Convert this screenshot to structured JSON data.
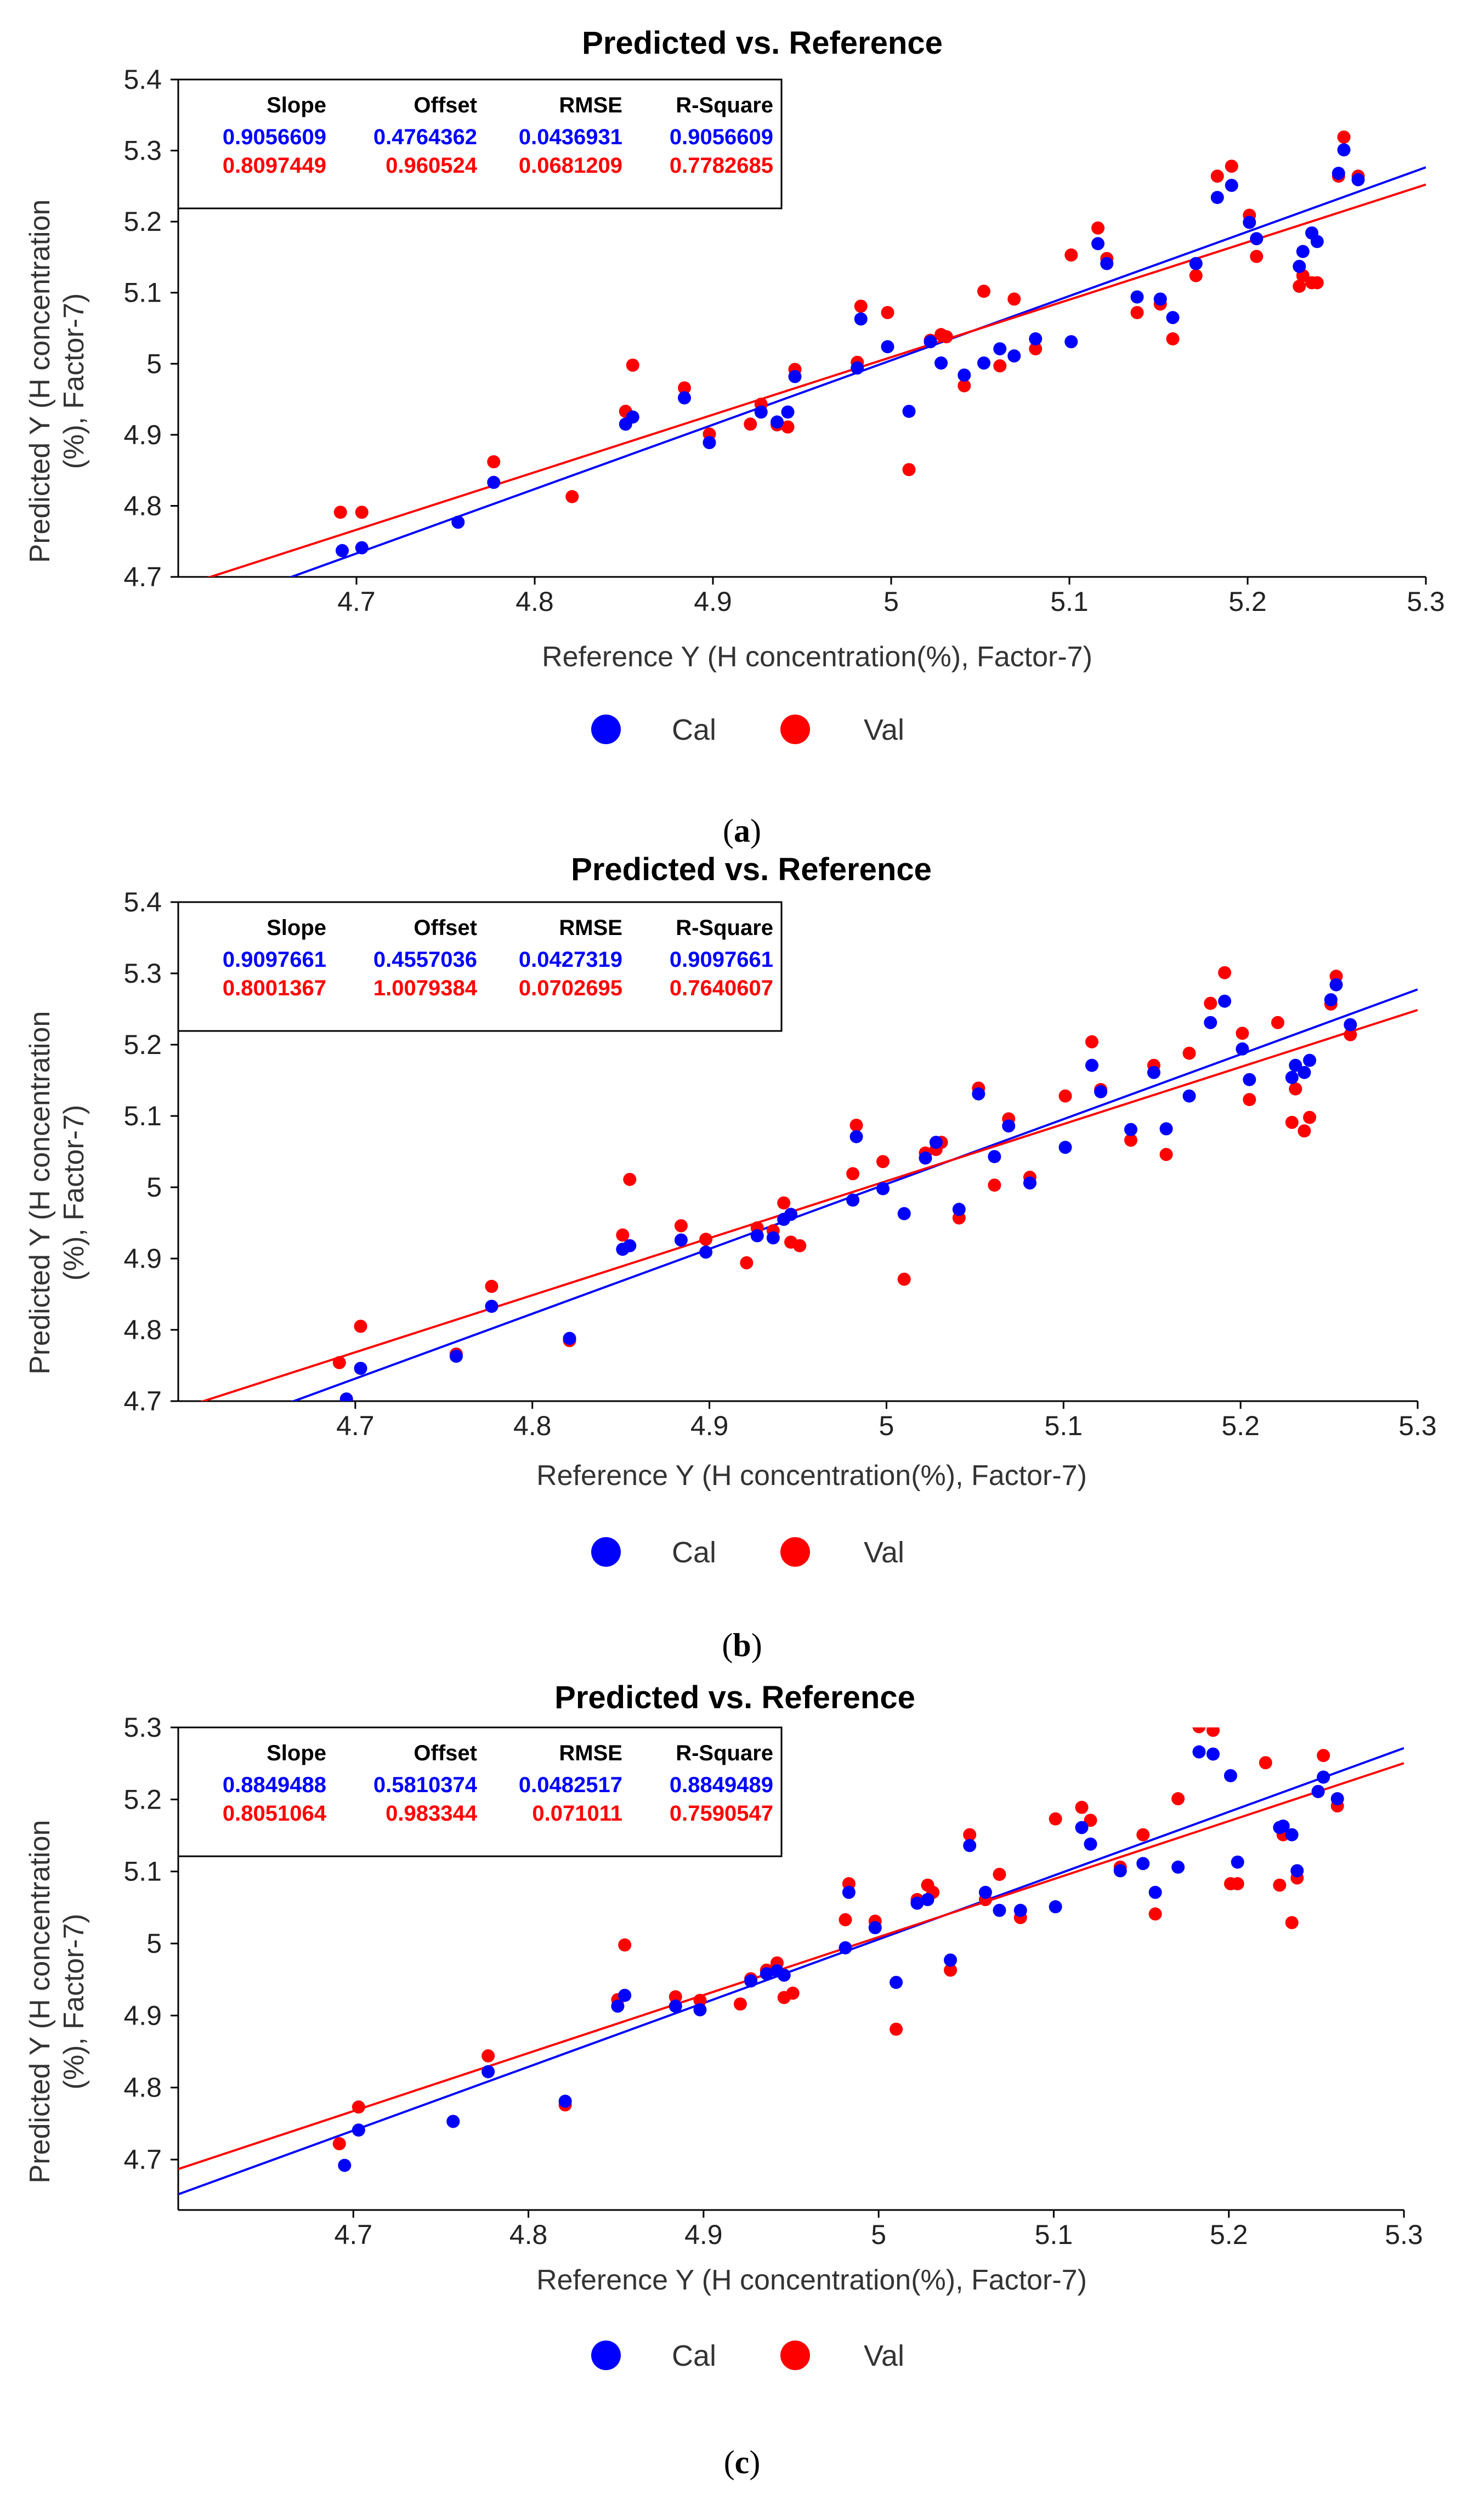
{
  "chart_data": [
    {
      "type": "scatter",
      "title": "Predicted vs. Reference",
      "xlabel": "Reference Y (H concentration(%), Factor-7)",
      "ylabel_lines": [
        "Predicted Y (H concentration",
        "(%), Factor-7)"
      ],
      "xlim": [
        4.6,
        5.3
      ],
      "ylim": [
        4.7,
        5.4
      ],
      "xticks": [
        "4.7",
        "4.8",
        "4.9",
        "5",
        "5.1",
        "5.2",
        "5.3"
      ],
      "yticks": [
        "4.7",
        "4.8",
        "4.9",
        "5",
        "5.1",
        "5.2",
        "5.3",
        "5.4"
      ],
      "caption_label": "a",
      "stats_headers": [
        "Slope",
        "Offset",
        "RMSE",
        "R-Square"
      ],
      "series": [
        {
          "name": "Cal",
          "color": "#0000ff",
          "stats": [
            "0.9056609",
            "0.4764362",
            "0.0436931",
            "0.9056609"
          ],
          "line": {
            "slope": 0.9056609,
            "offset": 0.4764362
          },
          "x": [
            4.692,
            4.703,
            4.757,
            4.777,
            4.851,
            4.855,
            4.884,
            4.898,
            4.927,
            4.936,
            4.942,
            4.946,
            4.981,
            4.983,
            4.998,
            5.01,
            5.022,
            5.028,
            5.041,
            5.052,
            5.061,
            5.069,
            5.081,
            5.101,
            5.116,
            5.121,
            5.138,
            5.151,
            5.158,
            5.171,
            5.183,
            5.191,
            5.201,
            5.205,
            5.229,
            5.231,
            5.236,
            5.239,
            5.251,
            5.254,
            5.262
          ],
          "y": [
            4.737,
            4.741,
            4.777,
            4.833,
            4.915,
            4.925,
            4.952,
            4.889,
            4.932,
            4.918,
            4.932,
            4.982,
            4.994,
            5.063,
            5.024,
            4.933,
            5.031,
            5.001,
            4.984,
            5.001,
            5.021,
            5.011,
            5.035,
            5.031,
            5.169,
            5.141,
            5.094,
            5.091,
            5.065,
            5.141,
            5.234,
            5.251,
            5.199,
            5.176,
            5.137,
            5.158,
            5.184,
            5.172,
            5.268,
            5.301,
            5.259
          ]
        },
        {
          "name": "Val",
          "color": "#ff0000",
          "stats": [
            "0.8097449",
            "0.960524",
            "0.0681209",
            "0.7782685"
          ],
          "line": {
            "slope": 0.8097449,
            "offset": 0.960524
          },
          "x": [
            4.691,
            4.703,
            4.777,
            4.821,
            4.851,
            4.855,
            4.884,
            4.898,
            4.921,
            4.927,
            4.936,
            4.942,
            4.946,
            4.981,
            4.983,
            4.998,
            5.01,
            5.022,
            5.028,
            5.031,
            5.041,
            5.052,
            5.061,
            5.069,
            5.081,
            5.101,
            5.116,
            5.121,
            5.138,
            5.151,
            5.158,
            5.171,
            5.183,
            5.191,
            5.201,
            5.205,
            5.229,
            5.231,
            5.236,
            5.239,
            5.251,
            5.254,
            5.262
          ],
          "y": [
            4.791,
            4.791,
            4.862,
            4.813,
            4.933,
            4.998,
            4.966,
            4.901,
            4.915,
            4.943,
            4.914,
            4.911,
            4.992,
            5.002,
            5.081,
            5.072,
            4.851,
            5.033,
            5.041,
            5.038,
            4.969,
            5.102,
            4.997,
            5.091,
            5.021,
            5.153,
            5.191,
            5.148,
            5.072,
            5.084,
            5.035,
            5.124,
            5.264,
            5.278,
            5.209,
            5.151,
            5.109,
            5.124,
            5.114,
            5.114,
            5.264,
            5.319,
            5.264
          ]
        }
      ]
    },
    {
      "type": "scatter",
      "title": "Predicted vs. Reference",
      "xlabel": "Reference Y (H concentration(%), Factor-7)",
      "ylabel_lines": [
        "Predicted Y (H concentration",
        "(%), Factor-7)"
      ],
      "xlim": [
        4.6,
        5.3
      ],
      "ylim": [
        4.7,
        5.4
      ],
      "xticks": [
        "4.7",
        "4.8",
        "4.9",
        "5",
        "5.1",
        "5.2",
        "5.3"
      ],
      "yticks": [
        "4.7",
        "4.8",
        "4.9",
        "5",
        "5.1",
        "5.2",
        "5.3",
        "5.4"
      ],
      "caption_label": "b",
      "stats_headers": [
        "Slope",
        "Offset",
        "RMSE",
        "R-Square"
      ],
      "series": [
        {
          "name": "Cal",
          "color": "#0000ff",
          "stats": [
            "0.9097661",
            "0.4557036",
            "0.0427319",
            "0.9097661"
          ],
          "line": {
            "slope": 0.9097661,
            "offset": 0.4557036
          },
          "x": [
            4.695,
            4.703,
            4.757,
            4.777,
            4.821,
            4.851,
            4.855,
            4.884,
            4.898,
            4.927,
            4.936,
            4.942,
            4.946,
            4.981,
            4.983,
            4.998,
            5.01,
            5.022,
            5.028,
            5.041,
            5.052,
            5.061,
            5.069,
            5.081,
            5.101,
            5.116,
            5.121,
            5.138,
            5.151,
            5.158,
            5.171,
            5.183,
            5.191,
            5.201,
            5.205,
            5.229,
            5.231,
            5.236,
            5.239,
            5.251,
            5.254,
            5.262
          ],
          "y": [
            4.703,
            4.746,
            4.763,
            4.833,
            4.788,
            4.913,
            4.918,
            4.926,
            4.909,
            4.932,
            4.929,
            4.955,
            4.962,
            4.982,
            5.071,
            4.998,
            4.963,
            5.041,
            5.063,
            4.969,
            5.131,
            5.043,
            5.086,
            5.006,
            5.056,
            5.171,
            5.134,
            5.081,
            5.161,
            5.082,
            5.128,
            5.231,
            5.261,
            5.194,
            5.151,
            5.154,
            5.171,
            5.161,
            5.178,
            5.263,
            5.284,
            5.228
          ]
        },
        {
          "name": "Val",
          "color": "#ff0000",
          "stats": [
            "0.8001367",
            "1.0079384",
            "0.0702695",
            "0.7640607"
          ],
          "line": {
            "slope": 0.8001367,
            "offset": 1.0079384
          },
          "x": [
            4.691,
            4.703,
            4.757,
            4.777,
            4.821,
            4.851,
            4.855,
            4.884,
            4.898,
            4.921,
            4.927,
            4.936,
            4.942,
            4.946,
            4.951,
            4.981,
            4.983,
            4.998,
            5.01,
            5.022,
            5.028,
            5.031,
            5.041,
            5.052,
            5.061,
            5.069,
            5.081,
            5.101,
            5.116,
            5.121,
            5.138,
            5.151,
            5.158,
            5.171,
            5.183,
            5.191,
            5.201,
            5.205,
            5.221,
            5.229,
            5.231,
            5.236,
            5.239,
            5.251,
            5.254,
            5.262
          ],
          "y": [
            4.754,
            4.805,
            4.766,
            4.861,
            4.785,
            4.933,
            5.011,
            4.946,
            4.927,
            4.894,
            4.943,
            4.939,
            4.978,
            4.923,
            4.918,
            5.019,
            5.087,
            5.036,
            4.871,
            5.048,
            5.053,
            5.063,
            4.957,
            5.139,
            5.003,
            5.096,
            5.014,
            5.128,
            5.204,
            5.137,
            5.066,
            5.171,
            5.046,
            5.188,
            5.258,
            5.301,
            5.216,
            5.123,
            5.231,
            5.091,
            5.138,
            5.079,
            5.098,
            5.257,
            5.296,
            5.214
          ]
        }
      ]
    },
    {
      "type": "scatter",
      "title": "Predicted vs. Reference",
      "xlabel": "Reference Y (H concentration(%), Factor-7)",
      "ylabel_lines": [
        "Predicted Y (H concentration",
        "(%), Factor-7)"
      ],
      "xlim": [
        4.6,
        5.3
      ],
      "ylim": [
        4.63,
        5.3
      ],
      "xticks": [
        "4.7",
        "4.8",
        "4.9",
        "5",
        "5.1",
        "5.2",
        "5.3"
      ],
      "yticks": [
        "4.7",
        "4.8",
        "4.9",
        "5",
        "5.1",
        "5.2",
        "5.3"
      ],
      "caption_label": "c",
      "stats_headers": [
        "Slope",
        "Offset",
        "RMSE",
        "R-Square"
      ],
      "series": [
        {
          "name": "Cal",
          "color": "#0000ff",
          "stats": [
            "0.8849488",
            "0.5810374",
            "0.0482517",
            "0.8849489"
          ],
          "line": {
            "slope": 0.8849488,
            "offset": 0.5810374
          },
          "x": [
            4.695,
            4.703,
            4.757,
            4.777,
            4.821,
            4.851,
            4.855,
            4.884,
            4.898,
            4.927,
            4.936,
            4.942,
            4.946,
            4.981,
            4.983,
            4.998,
            5.01,
            5.022,
            5.028,
            5.041,
            5.052,
            5.061,
            5.069,
            5.081,
            5.101,
            5.116,
            5.121,
            5.138,
            5.151,
            5.158,
            5.171,
            5.183,
            5.191,
            5.201,
            5.205,
            5.229,
            5.231,
            5.236,
            5.239,
            5.251,
            5.254,
            5.262
          ],
          "y": [
            4.692,
            4.741,
            4.753,
            4.822,
            4.781,
            4.913,
            4.928,
            4.913,
            4.908,
            4.948,
            4.958,
            4.962,
            4.956,
            4.994,
            5.071,
            5.022,
            4.946,
            5.056,
            5.061,
            4.977,
            5.136,
            5.071,
            5.046,
            5.046,
            5.051,
            5.161,
            5.138,
            5.101,
            5.111,
            5.071,
            5.106,
            5.266,
            5.263,
            5.233,
            5.113,
            5.161,
            5.163,
            5.151,
            5.101,
            5.211,
            5.231,
            5.201
          ]
        },
        {
          "name": "Val",
          "color": "#ff0000",
          "stats": [
            "0.8051064",
            "0.983344",
            "0.071011",
            "0.7590547"
          ],
          "line": {
            "slope": 0.8051064,
            "offset": 0.983344
          },
          "x": [
            4.692,
            4.703,
            4.757,
            4.777,
            4.821,
            4.851,
            4.855,
            4.884,
            4.898,
            4.921,
            4.927,
            4.936,
            4.942,
            4.946,
            4.951,
            4.981,
            4.983,
            4.998,
            5.01,
            5.022,
            5.028,
            5.031,
            5.041,
            5.052,
            5.061,
            5.069,
            5.081,
            5.101,
            5.116,
            5.121,
            5.138,
            5.151,
            5.158,
            5.171,
            5.183,
            5.191,
            5.201,
            5.205,
            5.221,
            5.229,
            5.231,
            5.236,
            5.239,
            5.251,
            5.254,
            5.262
          ],
          "y": [
            4.722,
            4.773,
            4.753,
            4.844,
            4.776,
            4.922,
            4.998,
            4.926,
            4.921,
            4.916,
            4.951,
            4.963,
            4.973,
            4.925,
            4.931,
            5.033,
            5.083,
            5.031,
            4.881,
            5.061,
            5.081,
            5.071,
            4.963,
            5.151,
            5.061,
            5.096,
            5.036,
            5.173,
            5.189,
            5.171,
            5.106,
            5.151,
            5.041,
            5.201,
            5.301,
            5.296,
            5.083,
            5.083,
            5.251,
            5.081,
            5.151,
            5.029,
            5.091,
            5.211,
            5.261,
            5.191
          ]
        }
      ]
    }
  ],
  "legend": {
    "cal_label": "Cal",
    "val_label": "Val"
  }
}
